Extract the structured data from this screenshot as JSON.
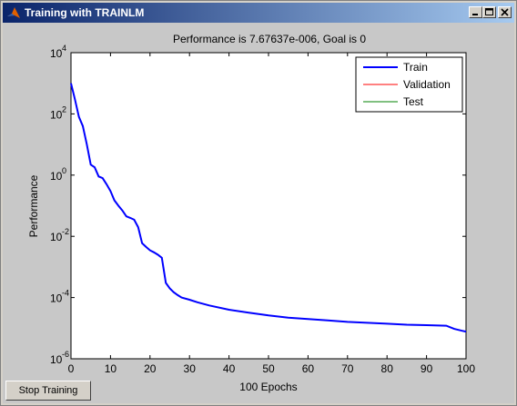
{
  "window": {
    "title": "Training with TRAINLM",
    "icon": "matlab-icon",
    "controls": [
      "minimize-icon",
      "maximize-icon",
      "close-icon"
    ]
  },
  "buttons": {
    "stop_training": "Stop Training"
  },
  "chart_data": {
    "type": "line",
    "title": "Performance is 7.67637e-006, Goal is 0",
    "xlabel": "100 Epochs",
    "ylabel": "Performance",
    "xlim": [
      0,
      100
    ],
    "ylim": [
      1e-06,
      10000
    ],
    "yscale": "log",
    "grid": false,
    "legend_position": "top-right",
    "x_ticks": [
      "0",
      "10",
      "20",
      "30",
      "40",
      "50",
      "60",
      "70",
      "80",
      "90",
      "100"
    ],
    "y_ticks": [
      {
        "base": "10",
        "exp": "-6"
      },
      {
        "base": "10",
        "exp": "-4"
      },
      {
        "base": "10",
        "exp": "-2"
      },
      {
        "base": "10",
        "exp": "0"
      },
      {
        "base": "10",
        "exp": "2"
      },
      {
        "base": "10",
        "exp": "4"
      }
    ],
    "series": [
      {
        "name": "Train",
        "color": "#0000ff",
        "x": [
          0,
          1,
          2,
          3,
          4,
          5,
          6,
          7,
          8,
          9,
          10,
          11,
          12,
          13,
          14,
          15,
          16,
          17,
          18,
          19,
          20,
          21,
          22,
          23,
          24,
          25,
          26,
          27,
          28,
          30,
          32,
          35,
          40,
          45,
          50,
          55,
          60,
          65,
          70,
          75,
          80,
          85,
          90,
          95,
          97,
          99,
          100
        ],
        "y": [
          1000,
          300,
          80,
          40,
          10,
          2.2,
          1.8,
          0.9,
          0.8,
          0.5,
          0.3,
          0.15,
          0.1,
          0.07,
          0.045,
          0.04,
          0.035,
          0.02,
          0.006,
          0.0045,
          0.0035,
          0.003,
          0.0025,
          0.002,
          0.0003,
          0.0002,
          0.00015,
          0.00012,
          0.0001,
          8.5e-05,
          7e-05,
          5.5e-05,
          4e-05,
          3.2e-05,
          2.6e-05,
          2.2e-05,
          2e-05,
          1.8e-05,
          1.6e-05,
          1.5e-05,
          1.4e-05,
          1.3e-05,
          1.25e-05,
          1.2e-05,
          9.5e-06,
          8.2e-06,
          7.7e-06
        ]
      },
      {
        "name": "Validation",
        "color": "#ff0000",
        "x": [],
        "y": []
      },
      {
        "name": "Test",
        "color": "#008000",
        "x": [],
        "y": []
      }
    ]
  }
}
